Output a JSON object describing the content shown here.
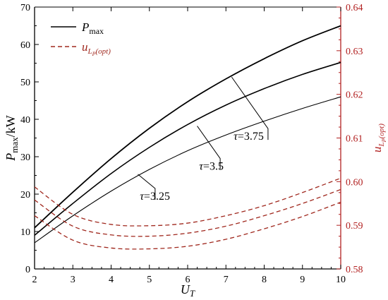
{
  "chart_data": {
    "type": "line",
    "x_axis": {
      "label_base": "U",
      "label_sub": "T",
      "range": [
        2,
        10
      ],
      "ticks": [
        2,
        3,
        4,
        5,
        6,
        7,
        8,
        9,
        10
      ]
    },
    "y_left": {
      "label": "P",
      "label_sub": "max",
      "label_tail": "/kW",
      "range": [
        0,
        70
      ],
      "ticks": [
        0,
        10,
        20,
        30,
        40,
        50,
        60,
        70
      ]
    },
    "y_right": {
      "label": "u",
      "label_sub": "L",
      "label_subsub": "P",
      "label_tail": "(opt)",
      "range": [
        0.58,
        0.64
      ],
      "ticks": [
        "0.58",
        "0.59",
        "0.60",
        "0.61",
        "0.62",
        "0.63",
        "0.64"
      ],
      "color": "#b22222"
    },
    "legend": [
      {
        "name_base": "P",
        "name_sub": "max",
        "style": "solid",
        "color": "#000000"
      },
      {
        "name_base": "u",
        "name_sub": "L",
        "name_subsub": "P",
        "name_tail": "(opt)",
        "style": "dashed",
        "color": "#a0281e"
      }
    ],
    "legend_position": "top-left",
    "x": [
      2,
      3,
      4,
      5,
      6,
      7,
      8,
      9,
      10
    ],
    "series_pmax": [
      {
        "tau": "τ=3.75",
        "values": [
          11,
          20.5,
          29.5,
          37.6,
          44.7,
          50.8,
          56.2,
          61.0,
          65.0
        ]
      },
      {
        "tau": "τ=3.5",
        "values": [
          9,
          17.5,
          25.5,
          32.5,
          38.6,
          43.8,
          48.2,
          52.0,
          55.2
        ]
      },
      {
        "tau": "τ=3.25",
        "values": [
          7,
          14.2,
          20.8,
          26.6,
          31.6,
          35.8,
          39.5,
          42.9,
          46.0
        ]
      }
    ],
    "series_u": [
      {
        "tau": "τ=3.75",
        "values": [
          0.5988,
          0.5925,
          0.5902,
          0.5899,
          0.5905,
          0.5922,
          0.5945,
          0.5975,
          0.6008
        ]
      },
      {
        "tau": "τ=3.5",
        "values": [
          0.5958,
          0.5898,
          0.5878,
          0.5875,
          0.5882,
          0.5898,
          0.5922,
          0.595,
          0.5982
        ]
      },
      {
        "tau": "τ=3.25",
        "values": [
          0.5922,
          0.5866,
          0.5848,
          0.5846,
          0.5852,
          0.5868,
          0.5892,
          0.592,
          0.5953
        ]
      }
    ],
    "annotations": [
      {
        "text": "τ=3.75",
        "arrow_to_x": 7.15,
        "arrow_to_y": 51.3,
        "text_x": 7.2,
        "text_y": 34.5,
        "elbow_x": 8.1
      },
      {
        "text": "τ=3.5",
        "arrow_to_x": 6.25,
        "arrow_to_y": 38.2,
        "text_x": 6.3,
        "text_y": 26.5,
        "elbow_x": 6.85
      },
      {
        "text": "τ=3.25",
        "arrow_to_x": 4.7,
        "arrow_to_y": 25.3,
        "text_x": 4.75,
        "text_y": 18.5,
        "elbow_x": 5.15
      }
    ]
  }
}
